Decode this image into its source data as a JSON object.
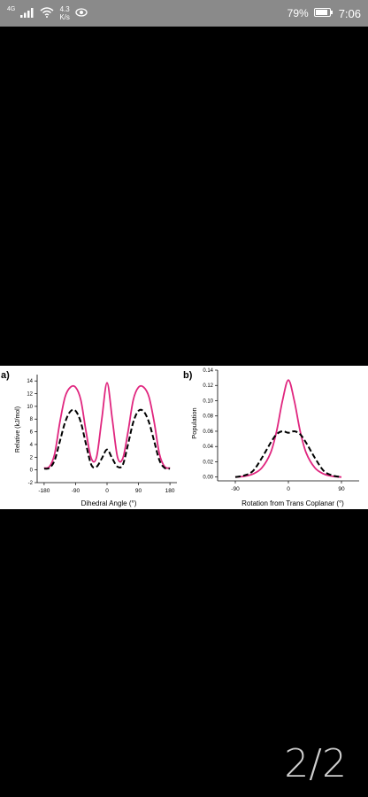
{
  "status_bar": {
    "network": "4G",
    "speed_value": "4.3",
    "speed_unit": "K/s",
    "battery_percent": "79%",
    "time": "7:06",
    "icons": [
      "signal-icon",
      "wifi-icon",
      "eye-icon",
      "battery-icon"
    ]
  },
  "viewer": {
    "page_indicator": "2/2"
  },
  "chart_data": [
    {
      "type": "line",
      "panel_label": "a)",
      "xlabel": "Dihedral Angle (°)",
      "ylabel": "Relative (kJ/mol)",
      "xlim": [
        -200,
        200
      ],
      "ylim": [
        -2,
        15
      ],
      "x_ticks": [
        -180,
        -90,
        0,
        90,
        180
      ],
      "y_ticks": [
        -2,
        0,
        2,
        4,
        6,
        8,
        10,
        12,
        14
      ],
      "series": [
        {
          "color": "#e0267f",
          "style": "solid",
          "x": [
            -180,
            -165,
            -150,
            -135,
            -120,
            -105,
            -90,
            -75,
            -60,
            -45,
            -30,
            -15,
            0,
            15,
            30,
            45,
            60,
            75,
            90,
            105,
            120,
            135,
            150,
            165,
            180
          ],
          "y": [
            0.3,
            0.5,
            2.5,
            7.5,
            11.5,
            13.0,
            13.0,
            11.0,
            6.0,
            1.8,
            2.0,
            8.0,
            13.7,
            8.0,
            2.0,
            1.8,
            6.0,
            11.0,
            13.0,
            13.0,
            11.5,
            7.5,
            2.5,
            0.5,
            0.3
          ]
        },
        {
          "color": "#000000",
          "style": "dashed",
          "x": [
            -180,
            -165,
            -150,
            -135,
            -120,
            -105,
            -90,
            -75,
            -60,
            -45,
            -30,
            -15,
            0,
            15,
            30,
            45,
            60,
            75,
            90,
            105,
            120,
            135,
            150,
            165,
            180
          ],
          "y": [
            0.2,
            0.3,
            1.5,
            4.5,
            7.5,
            9.2,
            9.3,
            7.5,
            4.0,
            0.8,
            0.5,
            1.8,
            3.2,
            1.8,
            0.5,
            0.8,
            4.0,
            7.5,
            9.3,
            9.2,
            7.5,
            4.5,
            1.5,
            0.3,
            0.2
          ]
        }
      ]
    },
    {
      "type": "line",
      "panel_label": "b)",
      "xlabel": "Rotation from Trans Coplanar (°)",
      "ylabel": "Population",
      "xlim": [
        -120,
        120
      ],
      "ylim": [
        -0.005,
        0.14
      ],
      "x_ticks": [
        -90,
        0,
        90
      ],
      "y_ticks": [
        0.0,
        0.02,
        0.04,
        0.06,
        0.08,
        0.1,
        0.12,
        0.14
      ],
      "series": [
        {
          "color": "#e0267f",
          "style": "solid",
          "x": [
            -90,
            -75,
            -60,
            -45,
            -30,
            -20,
            -10,
            0,
            10,
            20,
            30,
            45,
            60,
            75,
            90
          ],
          "y": [
            0.0,
            0.001,
            0.004,
            0.012,
            0.032,
            0.06,
            0.1,
            0.127,
            0.1,
            0.06,
            0.032,
            0.012,
            0.004,
            0.001,
            0.0
          ]
        },
        {
          "color": "#000000",
          "style": "dashed",
          "x": [
            -90,
            -75,
            -60,
            -45,
            -30,
            -20,
            -10,
            0,
            10,
            20,
            30,
            45,
            60,
            75,
            90
          ],
          "y": [
            0.0,
            0.002,
            0.008,
            0.025,
            0.045,
            0.056,
            0.06,
            0.058,
            0.06,
            0.056,
            0.045,
            0.025,
            0.008,
            0.002,
            0.0
          ]
        }
      ]
    }
  ]
}
